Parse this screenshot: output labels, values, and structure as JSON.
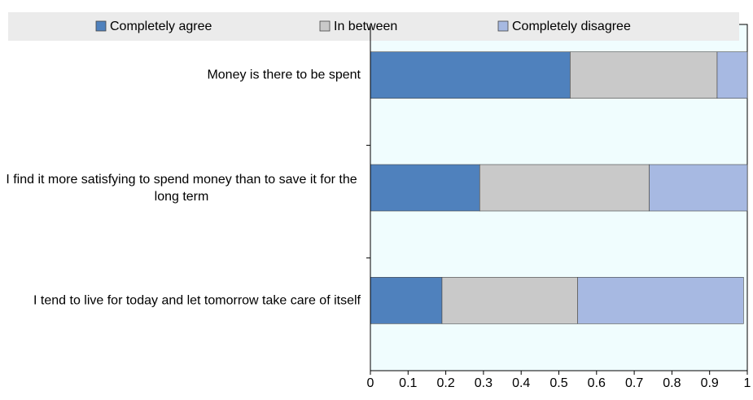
{
  "chart_data": {
    "type": "stacked_barh",
    "categories": [
      "Money is there to be spent",
      "I find it more satisfying to spend money than to save it for the long term",
      "I tend to live for today and let tomorrow take care of itself"
    ],
    "series": [
      {
        "name": "Completely agree",
        "color": "#4f81bd",
        "values": [
          0.53,
          0.29,
          0.19
        ]
      },
      {
        "name": "In between",
        "color": "#c9c9c9",
        "values": [
          0.39,
          0.45,
          0.36
        ]
      },
      {
        "name": "Completely disagree",
        "color": "#a7b9e2",
        "values": [
          0.08,
          0.26,
          0.44
        ]
      }
    ],
    "xlim": [
      0,
      1
    ],
    "xticks": [
      0,
      0.1,
      0.2,
      0.3,
      0.4,
      0.5,
      0.6,
      0.7,
      0.8,
      0.9,
      1
    ],
    "legend": "top"
  }
}
